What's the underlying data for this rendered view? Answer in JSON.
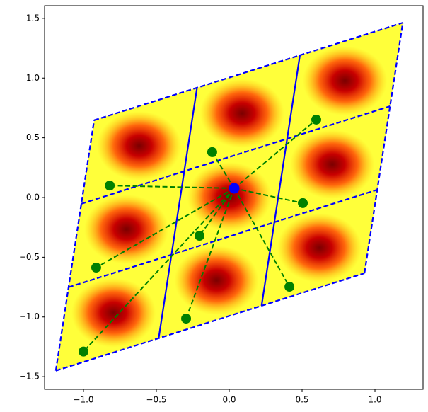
{
  "chart_data": {
    "type": "lattice",
    "xlim": [
      -1.267,
      1.33
    ],
    "ylim": [
      -1.606,
      1.606
    ],
    "xticks": [
      {
        "value": -1,
        "label": "−1.0"
      },
      {
        "value": -0.5,
        "label": "−0.5"
      },
      {
        "value": 0,
        "label": "0.0"
      },
      {
        "value": 0.5,
        "label": "0.5"
      },
      {
        "value": 1,
        "label": "1.0"
      }
    ],
    "yticks": [
      {
        "value": -1.5,
        "label": "−1.5"
      },
      {
        "value": -1,
        "label": "−1.0"
      },
      {
        "value": -0.5,
        "label": "−0.5"
      },
      {
        "value": 0,
        "label": "0.0"
      },
      {
        "value": 0.5,
        "label": "0.5"
      },
      {
        "value": 1,
        "label": "1.0"
      },
      {
        "value": 1.5,
        "label": "1.5"
      }
    ],
    "lattice": {
      "origin": [
        -1.19,
        -1.45
      ],
      "a": [
        0.706,
        0.272
      ],
      "b": [
        0.0877,
        0.699
      ],
      "cells": 3,
      "color": "#0000ff"
    },
    "density_centers": {
      "x": [
        -0.793,
        -0.087,
        0.619,
        -0.705,
        0.001,
        0.707,
        -0.618,
        0.088,
        0.794
      ],
      "y": [
        -0.965,
        -0.693,
        -0.421,
        -0.266,
        0.006,
        0.278,
        0.433,
        0.705,
        0.977
      ]
    },
    "center_point": {
      "x": 0.034,
      "y": 0.077,
      "color": "#0000ff"
    },
    "neighbors": {
      "x": [
        -1.0,
        -0.913,
        -0.296,
        -0.204,
        -0.82,
        -0.117,
        0.505,
        0.597,
        0.413
      ],
      "y": [
        -1.29,
        -0.587,
        -1.014,
        -0.32,
        0.1,
        0.38,
        -0.047,
        0.652,
        -0.747
      ],
      "color": "#008000"
    }
  }
}
